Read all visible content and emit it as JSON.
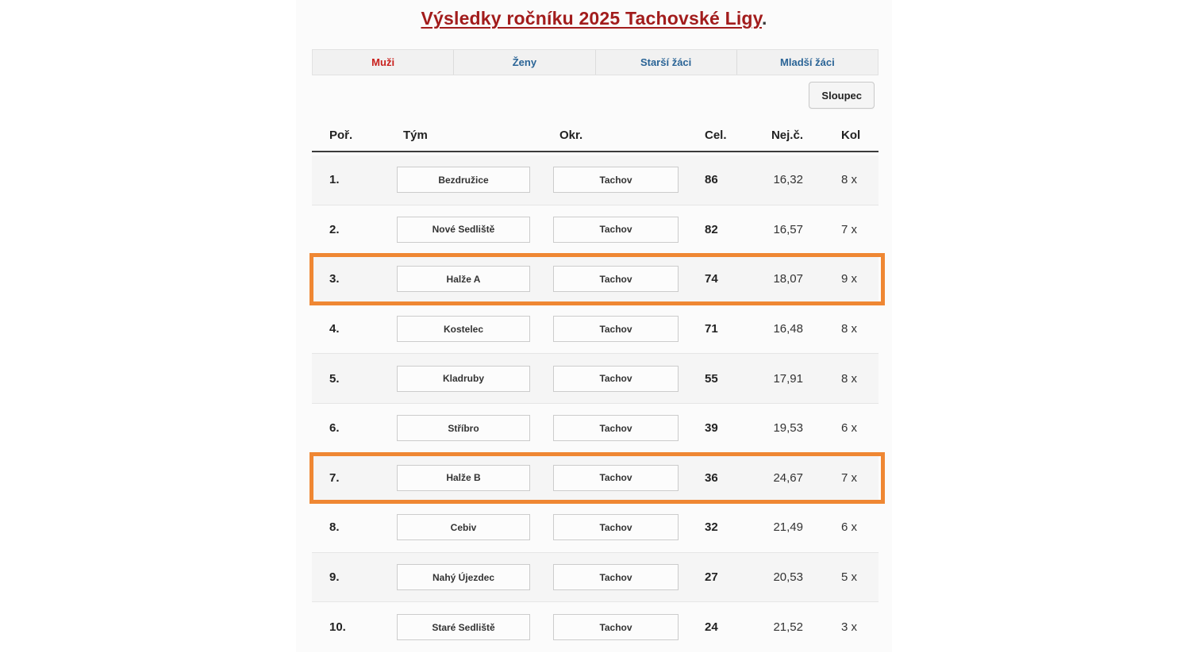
{
  "page": {
    "title": "Výsledky ročníku 2025 Tachovské Ligy",
    "title_suffix": "."
  },
  "tabs": [
    {
      "label": "Muži",
      "active": true
    },
    {
      "label": "Ženy",
      "active": false
    },
    {
      "label": "Starší žáci",
      "active": false
    },
    {
      "label": "Mladší žáci",
      "active": false
    }
  ],
  "toolbar": {
    "column_button_label": "Sloupec"
  },
  "table": {
    "headers": {
      "rank": "Poř.",
      "team": "Tým",
      "district": "Okr.",
      "total": "Cel.",
      "best": "Nej.č.",
      "rounds": "Kol"
    },
    "rows": [
      {
        "rank": "1.",
        "team": "Bezdružice",
        "district": "Tachov",
        "total": "86",
        "best": "16,32",
        "rounds": "8 x",
        "highlighted": false
      },
      {
        "rank": "2.",
        "team": "Nové Sedliště",
        "district": "Tachov",
        "total": "82",
        "best": "16,57",
        "rounds": "7 x",
        "highlighted": false
      },
      {
        "rank": "3.",
        "team": "Halže A",
        "district": "Tachov",
        "total": "74",
        "best": "18,07",
        "rounds": "9 x",
        "highlighted": true
      },
      {
        "rank": "4.",
        "team": "Kostelec",
        "district": "Tachov",
        "total": "71",
        "best": "16,48",
        "rounds": "8 x",
        "highlighted": false
      },
      {
        "rank": "5.",
        "team": "Kladruby",
        "district": "Tachov",
        "total": "55",
        "best": "17,91",
        "rounds": "8 x",
        "highlighted": false
      },
      {
        "rank": "6.",
        "team": "Stříbro",
        "district": "Tachov",
        "total": "39",
        "best": "19,53",
        "rounds": "6 x",
        "highlighted": false
      },
      {
        "rank": "7.",
        "team": "Halže B",
        "district": "Tachov",
        "total": "36",
        "best": "24,67",
        "rounds": "7 x",
        "highlighted": true
      },
      {
        "rank": "8.",
        "team": "Cebiv",
        "district": "Tachov",
        "total": "32",
        "best": "21,49",
        "rounds": "6 x",
        "highlighted": false
      },
      {
        "rank": "9.",
        "team": "Nahý Újezdec",
        "district": "Tachov",
        "total": "27",
        "best": "20,53",
        "rounds": "5 x",
        "highlighted": false
      },
      {
        "rank": "10.",
        "team": "Staré Sedliště",
        "district": "Tachov",
        "total": "24",
        "best": "21,52",
        "rounds": "3 x",
        "highlighted": false
      }
    ]
  },
  "colors": {
    "title_red": "#a21c1c",
    "accent_red": "#c9211e",
    "link_blue": "#2a6496",
    "highlight_orange": "#ef8733"
  }
}
